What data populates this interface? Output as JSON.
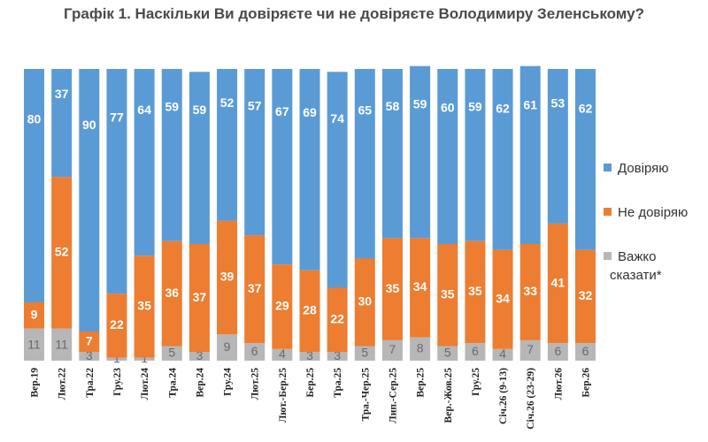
{
  "chart_data": {
    "type": "bar",
    "stacked": true,
    "orientation": "vertical",
    "title": "Графік 1. Наскільки Ви довіряєте чи не довіряєте Володимиру Зеленському?",
    "categories": [
      "Вер.19",
      "Лют.22",
      "Тра.22",
      "Гру.23",
      "Лют.24",
      "Тра.24",
      "Вер.24",
      "Гру.24",
      "Лют.25",
      "Лют.-Бер.25",
      "Бер.25",
      "Тра.25",
      "Тра.-Чер.25",
      "Лип.-Сер.25",
      "Вер.25",
      "Вер.-Жов.25",
      "Гру.25",
      "Січ.26 (9-13)",
      "Січ.26 (23-29)",
      "Лют.26",
      "Бер.26"
    ],
    "series": [
      {
        "name": "Важко сказати*",
        "color": "#b7b7b7",
        "values": [
          11,
          11,
          3,
          1,
          1,
          5,
          3,
          9,
          6,
          4,
          3,
          3,
          5,
          7,
          8,
          5,
          6,
          4,
          7,
          6,
          6
        ]
      },
      {
        "name": "Не довіряю",
        "color": "#ed7d31",
        "values": [
          9,
          52,
          7,
          22,
          35,
          36,
          37,
          39,
          37,
          29,
          28,
          22,
          30,
          35,
          34,
          35,
          35,
          34,
          33,
          41,
          32
        ]
      },
      {
        "name": "Довіряю",
        "color": "#5b9bd5",
        "values": [
          80,
          37,
          90,
          77,
          64,
          59,
          59,
          52,
          57,
          67,
          69,
          74,
          65,
          58,
          59,
          60,
          59,
          62,
          61,
          53,
          62
        ]
      }
    ],
    "ylim": [
      0,
      100
    ],
    "legend": {
      "position": "right",
      "entries": [
        "Довіряю",
        "Не довіряю",
        "Важко сказати*"
      ]
    },
    "grid": false
  }
}
